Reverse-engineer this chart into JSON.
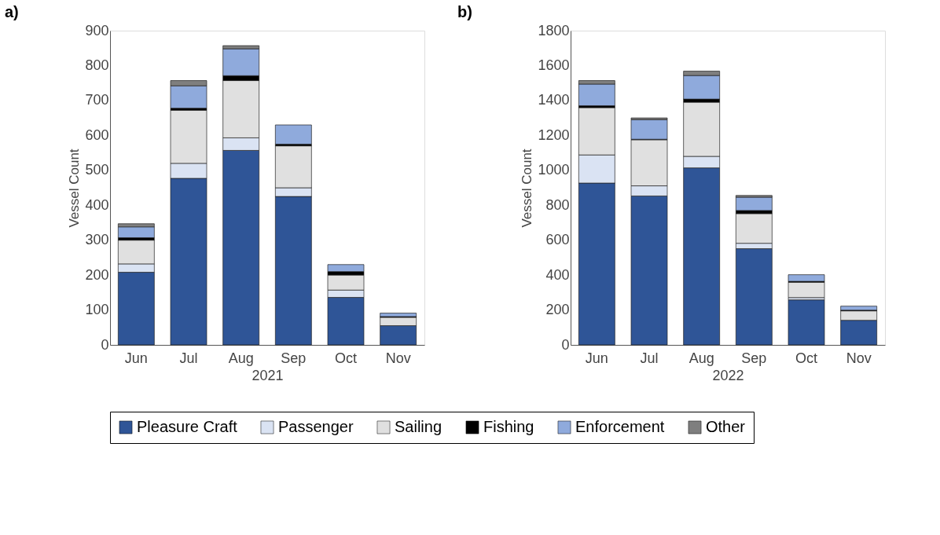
{
  "chart_data": [
    {
      "type": "bar",
      "title": "a)",
      "xlabel": "2021",
      "ylabel": "Vessel Count",
      "stacked": true,
      "categories": [
        "Jun",
        "Jul",
        "Aug",
        "Sep",
        "Oct",
        "Nov"
      ],
      "ylim": [
        0,
        900
      ],
      "yticks": [
        0,
        100,
        200,
        300,
        400,
        500,
        600,
        700,
        800,
        900
      ],
      "grid": false,
      "legend": "bottom",
      "series": [
        {
          "name": "Pleasure Craft",
          "color": "#2f5597",
          "values": [
            208,
            477,
            557,
            425,
            136,
            55
          ]
        },
        {
          "name": "Passenger",
          "color": "#dae3f3",
          "values": [
            24,
            43,
            36,
            25,
            21,
            0
          ]
        },
        {
          "name": "Sailing",
          "color": "#e0e0e0",
          "values": [
            68,
            152,
            164,
            120,
            43,
            24
          ]
        },
        {
          "name": "Fishing",
          "color": "#000000",
          "values": [
            7,
            6,
            14,
            5,
            10,
            2
          ]
        },
        {
          "name": "Enforcement",
          "color": "#8faadc",
          "values": [
            31,
            64,
            77,
            55,
            20,
            10
          ]
        },
        {
          "name": "Other",
          "color": "#7f7f7f",
          "values": [
            9,
            15,
            9,
            0,
            0,
            0
          ]
        }
      ]
    },
    {
      "type": "bar",
      "title": "b)",
      "xlabel": "2022",
      "ylabel": "Vessel Count",
      "stacked": true,
      "categories": [
        "Jun",
        "Jul",
        "Aug",
        "Sep",
        "Oct",
        "Nov"
      ],
      "ylim": [
        0,
        1800
      ],
      "yticks": [
        0,
        200,
        400,
        600,
        800,
        1000,
        1200,
        1400,
        1600,
        1800
      ],
      "grid": false,
      "legend": "bottom",
      "series": [
        {
          "name": "Pleasure Craft",
          "color": "#2f5597",
          "values": [
            927,
            853,
            1014,
            551,
            258,
            141
          ]
        },
        {
          "name": "Passenger",
          "color": "#dae3f3",
          "values": [
            161,
            58,
            66,
            31,
            13,
            0
          ]
        },
        {
          "name": "Sailing",
          "color": "#e0e0e0",
          "values": [
            271,
            264,
            310,
            170,
            88,
            54
          ]
        },
        {
          "name": "Fishing",
          "color": "#000000",
          "values": [
            11,
            3,
            18,
            18,
            5,
            4
          ]
        },
        {
          "name": "Enforcement",
          "color": "#8faadc",
          "values": [
            124,
            112,
            135,
            76,
            38,
            23
          ]
        },
        {
          "name": "Other",
          "color": "#7f7f7f",
          "values": [
            20,
            10,
            25,
            10,
            0,
            0
          ]
        }
      ]
    }
  ]
}
